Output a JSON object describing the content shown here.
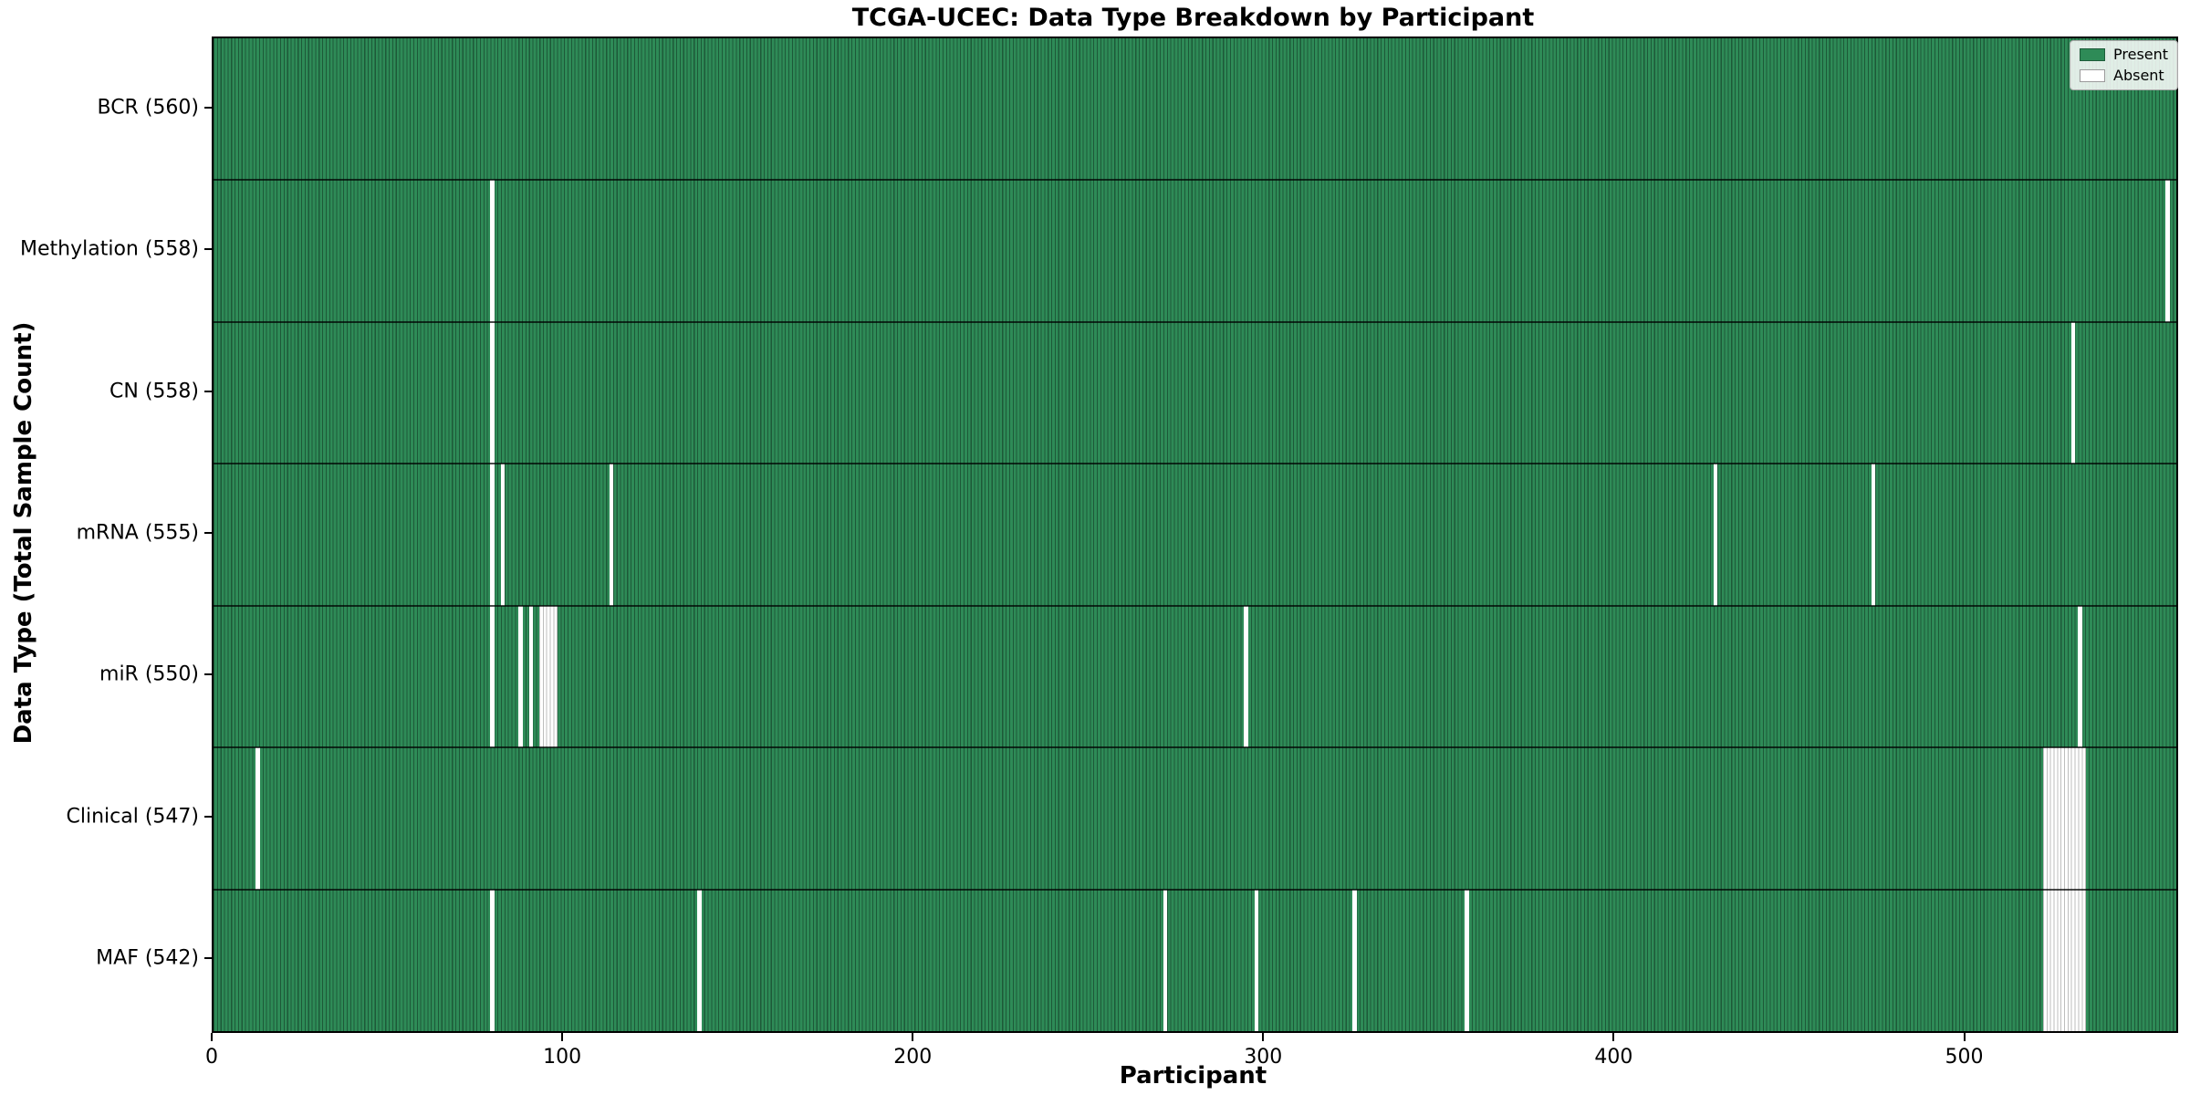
{
  "chart_data": {
    "type": "heatmap",
    "title": "TCGA-UCEC: Data Type Breakdown by Participant",
    "xlabel": "Participant",
    "ylabel": "Data Type (Total Sample Count)",
    "xlim": [
      0,
      560
    ],
    "n_participants": 560,
    "x_ticks": [
      0,
      100,
      200,
      300,
      400,
      500
    ],
    "grid": false,
    "legend_position": "upper right",
    "legend": {
      "present": "Present",
      "absent": "Absent"
    },
    "colors": {
      "present": "#2e8b57",
      "present_edge": "#1d5938",
      "absent": "#ffffff",
      "absent_edge": "#bdbdbd",
      "axis": "#000000"
    },
    "rows": [
      {
        "label": "BCR (560)",
        "name": "BCR",
        "present_count": 560,
        "absent_participants": []
      },
      {
        "label": "Methylation (558)",
        "name": "Methylation",
        "present_count": 558,
        "absent_participants": [
          79,
          557
        ]
      },
      {
        "label": "CN (558)",
        "name": "CN",
        "present_count": 558,
        "absent_participants": [
          79,
          530
        ]
      },
      {
        "label": "mRNA (555)",
        "name": "mRNA",
        "present_count": 555,
        "absent_participants": [
          79,
          82,
          113,
          428,
          473
        ]
      },
      {
        "label": "miR (550)",
        "name": "miR",
        "present_count": 550,
        "absent_participants": [
          79,
          87,
          90,
          93,
          94,
          95,
          96,
          97,
          294,
          532
        ]
      },
      {
        "label": "Clinical (547)",
        "name": "Clinical",
        "present_count": 547,
        "absent_participants": [
          12,
          522,
          523,
          524,
          525,
          526,
          527,
          528,
          529,
          530,
          531,
          532,
          533
        ]
      },
      {
        "label": "MAF (542)",
        "name": "MAF",
        "present_count": 542,
        "absent_participants": [
          79,
          138,
          271,
          297,
          325,
          357,
          522,
          523,
          524,
          525,
          526,
          527,
          528,
          529,
          530,
          531,
          532,
          533
        ]
      }
    ]
  }
}
